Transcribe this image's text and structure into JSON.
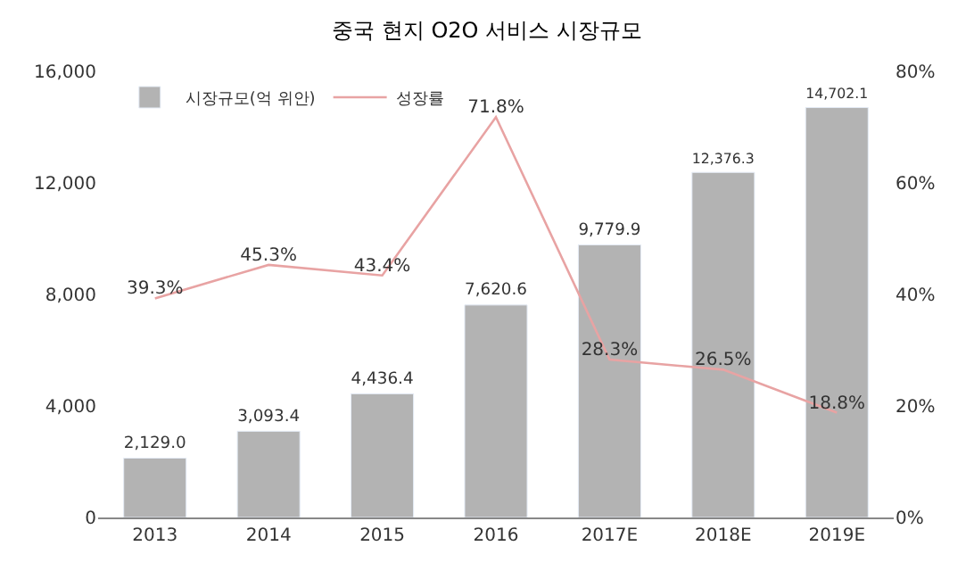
{
  "chart_data": {
    "type": "bar",
    "title": "중국 현지 O2O 서비스 시장규모",
    "categories": [
      "2013",
      "2014",
      "2015",
      "2016",
      "2017E",
      "2018E",
      "2019E"
    ],
    "series": [
      {
        "name": "시장규모(억 위안)",
        "color": "#b3b3b3",
        "values": [
          2129.0,
          3093.4,
          4436.4,
          7620.6,
          9779.9,
          12376.3,
          14702.1
        ],
        "value_labels": [
          "2,129.0",
          "3,093.4",
          "4,436.4",
          "7,620.6",
          "9,779.9",
          "12,376.3",
          "14,702.1"
        ]
      },
      {
        "name": "성장률",
        "type": "line",
        "axis": "y2",
        "color": "#e8a3a3",
        "values": [
          39.3,
          45.3,
          43.4,
          71.8,
          28.3,
          26.5,
          18.8
        ],
        "value_labels": [
          "39.3%",
          "45.3%",
          "43.4%",
          "71.8%",
          "28.3%",
          "26.5%",
          "18.8%"
        ]
      }
    ],
    "ylim": [
      0,
      16000
    ],
    "yticks": [
      0,
      {
        "value": 4000,
        "label": "4,000"
      },
      {
        "value": 8000,
        "label": "8,000"
      },
      {
        "value": 12000,
        "label": "12,000"
      },
      {
        "value": 16000,
        "label": "16,000"
      }
    ],
    "y2lim": [
      0,
      80
    ],
    "y2ticks": [
      {
        "value": 0,
        "label": "0%"
      },
      {
        "value": 20,
        "label": "20%"
      },
      {
        "value": 40,
        "label": "40%"
      },
      {
        "value": 60,
        "label": "60%"
      },
      {
        "value": 80,
        "label": "80%"
      }
    ],
    "legend": "top left",
    "marker": "none"
  }
}
